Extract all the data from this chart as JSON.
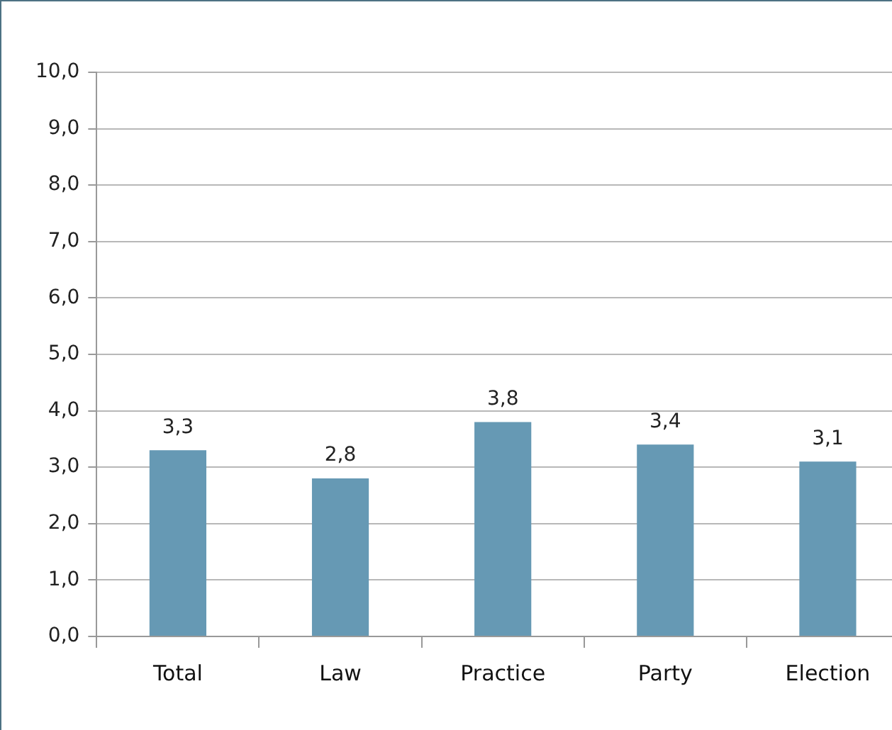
{
  "chart_data": {
    "type": "bar",
    "categories": [
      "Total",
      "Law",
      "Practice",
      "Party",
      "Election"
    ],
    "values": [
      3.3,
      2.8,
      3.8,
      3.4,
      3.1
    ],
    "value_labels": [
      "3,3",
      "2,8",
      "3,8",
      "3,4",
      "3,1"
    ],
    "color": "#6699b4",
    "ylim": [
      0,
      10
    ],
    "yticks": [
      {
        "value": 0,
        "label": "0,0"
      },
      {
        "value": 1,
        "label": "1,0"
      },
      {
        "value": 2,
        "label": "2,0"
      },
      {
        "value": 3,
        "label": "3,0"
      },
      {
        "value": 4,
        "label": "4,0"
      },
      {
        "value": 5,
        "label": "5,0"
      },
      {
        "value": 6,
        "label": "6,0"
      },
      {
        "value": 7,
        "label": "7,0"
      },
      {
        "value": 8,
        "label": "8,0"
      },
      {
        "value": 9,
        "label": "9,0"
      },
      {
        "value": 10,
        "label": "10,0"
      }
    ],
    "grid": "y",
    "legend": false
  }
}
